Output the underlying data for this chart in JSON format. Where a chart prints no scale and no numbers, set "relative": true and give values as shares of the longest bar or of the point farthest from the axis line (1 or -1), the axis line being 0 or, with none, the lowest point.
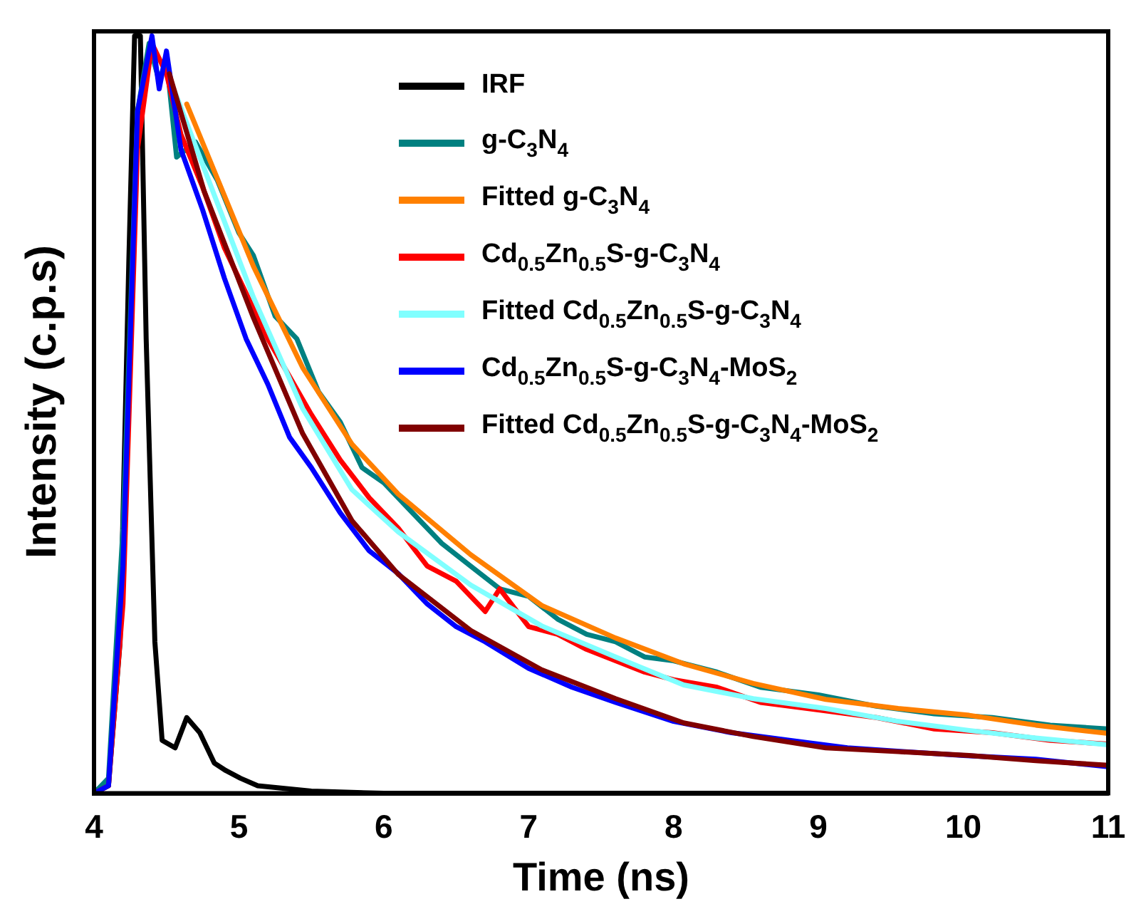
{
  "chart_data": {
    "type": "line",
    "relative": true,
    "xlabel": "Time (ns)",
    "ylabel": "Intensity (c.p.s)",
    "xlim": [
      4,
      11
    ],
    "xticks": [
      4,
      5,
      6,
      7,
      8,
      9,
      10,
      11
    ],
    "tick_labels": "x",
    "legend": "top right",
    "grid": false,
    "marker": "none",
    "line_style": "solid",
    "series": [
      {
        "name": "IRF",
        "color": "#000000",
        "x": [
          4.0,
          4.1,
          4.18,
          4.24,
          4.28,
          4.32,
          4.36,
          4.42,
          4.47,
          4.56,
          4.64,
          4.73,
          4.83,
          4.91,
          5.01,
          5.13,
          5.5,
          6.0,
          11.0
        ],
        "values": [
          0,
          0.01,
          0.2,
          0.7,
          1.0,
          1.0,
          0.6,
          0.2,
          0.07,
          0.06,
          0.1,
          0.08,
          0.04,
          0.03,
          0.02,
          0.01,
          0.003,
          0,
          0
        ]
      },
      {
        "name": "g-C$_{3}$N$_{4}$",
        "color": "#008080",
        "x": [
          4.0,
          4.1,
          4.2,
          4.3,
          4.38,
          4.45,
          4.5,
          4.57,
          4.7,
          4.85,
          5.0,
          5.1,
          5.25,
          5.4,
          5.55,
          5.7,
          5.85,
          6.0,
          6.2,
          6.4,
          6.6,
          6.8,
          7.0,
          7.2,
          7.4,
          7.6,
          7.8,
          8.0,
          8.3,
          8.6,
          9.0,
          9.4,
          9.8,
          10.2,
          10.6,
          11.0
        ],
        "values": [
          0,
          0.02,
          0.35,
          0.9,
          0.99,
          0.94,
          0.97,
          0.84,
          0.86,
          0.81,
          0.74,
          0.71,
          0.63,
          0.6,
          0.53,
          0.49,
          0.43,
          0.41,
          0.37,
          0.33,
          0.3,
          0.27,
          0.26,
          0.23,
          0.21,
          0.2,
          0.18,
          0.175,
          0.16,
          0.14,
          0.13,
          0.115,
          0.105,
          0.1,
          0.09,
          0.085
        ]
      },
      {
        "name": "Fitted g-C$_{3}$N$_{4}$",
        "color": "#ff8000",
        "x": [
          4.64,
          5.1,
          5.44,
          5.78,
          6.1,
          6.6,
          7.09,
          7.6,
          8.07,
          8.55,
          9.05,
          9.55,
          10.04,
          10.5,
          11.0
        ],
        "values": [
          0.91,
          0.696,
          0.562,
          0.461,
          0.395,
          0.315,
          0.248,
          0.205,
          0.171,
          0.145,
          0.124,
          0.112,
          0.103,
          0.09,
          0.079
        ]
      },
      {
        "name": "Cd$_{0.5}$Zn$_{0.5}$S-g-C$_{3}$N$_{4}$",
        "color": "#ff0000",
        "x": [
          4.0,
          4.1,
          4.2,
          4.3,
          4.4,
          4.5,
          4.6,
          4.75,
          4.9,
          5.05,
          5.2,
          5.35,
          5.5,
          5.7,
          5.9,
          6.1,
          6.3,
          6.5,
          6.7,
          6.8,
          7.0,
          7.2,
          7.4,
          7.6,
          7.8,
          8.0,
          8.3,
          8.6,
          9.0,
          9.4,
          9.8,
          10.2,
          10.6,
          11.0
        ],
        "values": [
          0,
          0.01,
          0.25,
          0.85,
          0.99,
          0.95,
          0.87,
          0.8,
          0.72,
          0.66,
          0.6,
          0.55,
          0.5,
          0.44,
          0.39,
          0.35,
          0.3,
          0.28,
          0.24,
          0.27,
          0.22,
          0.21,
          0.19,
          0.175,
          0.16,
          0.15,
          0.14,
          0.12,
          0.11,
          0.1,
          0.085,
          0.08,
          0.07,
          0.065
        ]
      },
      {
        "name": "Fitted Cd$_{0.5}$Zn$_{0.5}$S-g-C$_{3}$N$_{4}$",
        "color": "#80ffff",
        "x": [
          4.55,
          5.1,
          5.44,
          5.78,
          6.1,
          6.6,
          7.09,
          7.6,
          8.07,
          8.55,
          9.05,
          9.55,
          10.04,
          10.5,
          11.0
        ],
        "values": [
          0.93,
          0.655,
          0.508,
          0.401,
          0.345,
          0.275,
          0.221,
          0.18,
          0.143,
          0.125,
          0.112,
          0.095,
          0.083,
          0.073,
          0.064
        ]
      },
      {
        "name": "Cd$_{0.5}$Zn$_{0.5}$S-g-C$_{3}$N$_{4}$-MoS$_{2}$",
        "color": "#0000ff",
        "x": [
          4.0,
          4.1,
          4.2,
          4.3,
          4.4,
          4.45,
          4.5,
          4.6,
          4.75,
          4.9,
          5.05,
          5.2,
          5.35,
          5.5,
          5.7,
          5.9,
          6.1,
          6.3,
          6.5,
          6.7,
          7.0,
          7.3,
          7.6,
          8.0,
          8.4,
          8.8,
          9.2,
          9.6,
          10.0,
          10.5,
          11.0
        ],
        "values": [
          0,
          0.01,
          0.3,
          0.9,
          1.0,
          0.93,
          0.98,
          0.85,
          0.77,
          0.68,
          0.6,
          0.54,
          0.47,
          0.43,
          0.37,
          0.32,
          0.29,
          0.25,
          0.22,
          0.2,
          0.165,
          0.14,
          0.12,
          0.095,
          0.08,
          0.07,
          0.06,
          0.055,
          0.05,
          0.045,
          0.035
        ]
      },
      {
        "name": "Fitted Cd$_{0.5}$Zn$_{0.5}$S-g-C$_{3}$N$_{4}$-MoS$_{2}$",
        "color": "#800000",
        "x": [
          4.52,
          4.76,
          5.1,
          5.44,
          5.78,
          6.1,
          6.6,
          7.09,
          7.6,
          8.07,
          8.55,
          9.05,
          9.55,
          10.04,
          10.5,
          11.0
        ],
        "values": [
          0.95,
          0.795,
          0.628,
          0.475,
          0.36,
          0.289,
          0.215,
          0.163,
          0.125,
          0.093,
          0.075,
          0.06,
          0.055,
          0.05,
          0.043,
          0.037
        ]
      }
    ]
  }
}
